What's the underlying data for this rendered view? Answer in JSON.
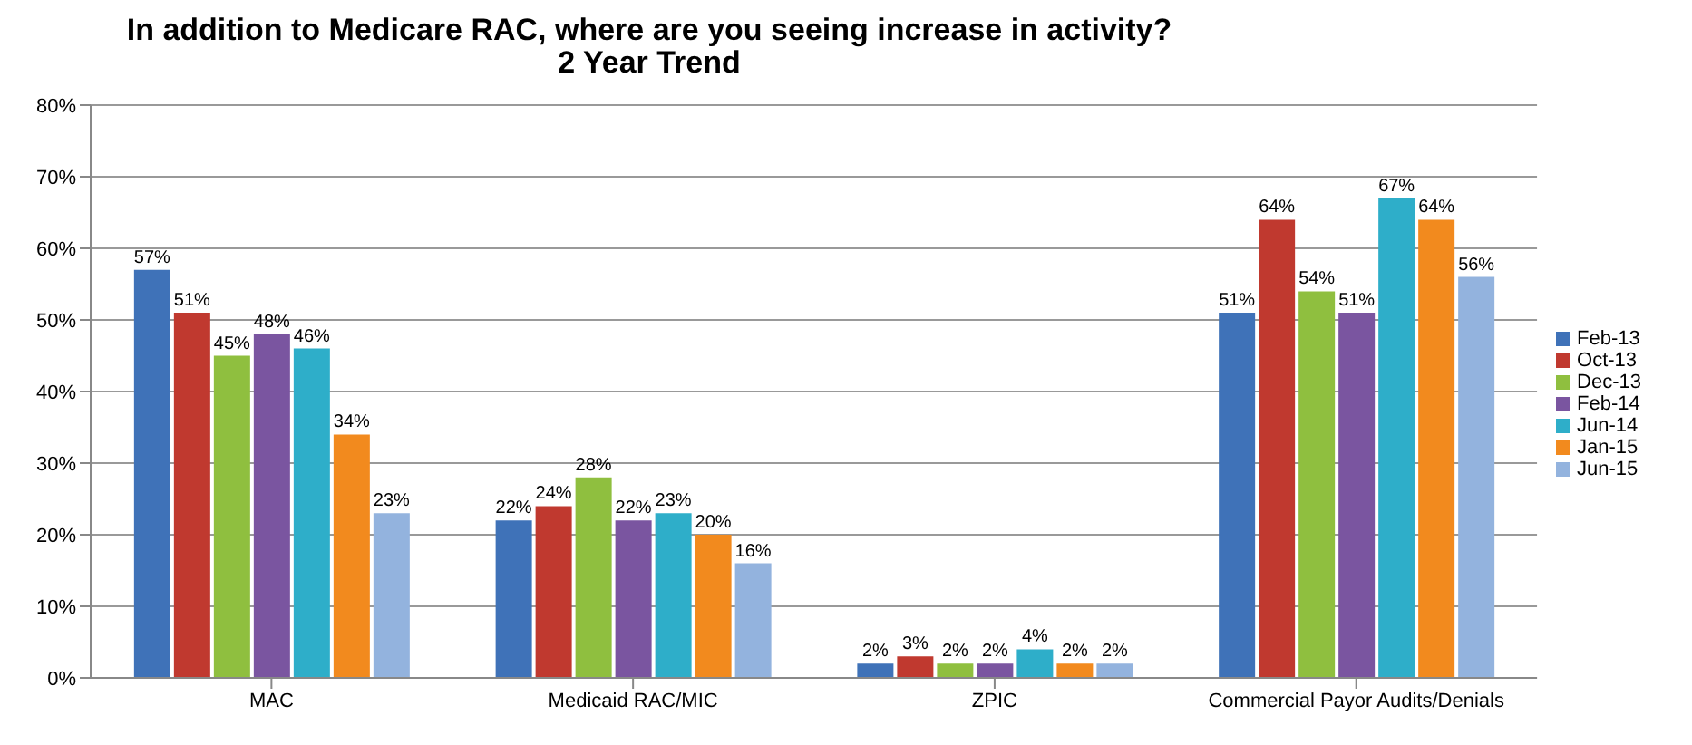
{
  "chart_data": {
    "type": "bar",
    "title": "In addition to Medicare RAC, where are you seeing increase in activity?",
    "subtitle": "2 Year Trend",
    "categories": [
      "MAC",
      "Medicaid RAC/MIC",
      "ZPIC",
      "Commercial Payor Audits/Denials"
    ],
    "series": [
      {
        "name": "Feb-13",
        "color": "#3f72b8",
        "values": [
          57,
          22,
          2,
          51
        ],
        "value_labels": [
          "57%",
          "22%",
          "2%",
          "51%"
        ]
      },
      {
        "name": "Oct-13",
        "color": "#c0392f",
        "values": [
          51,
          24,
          3,
          64
        ],
        "value_labels": [
          "51%",
          "24%",
          "3%",
          "64%"
        ]
      },
      {
        "name": "Dec-13",
        "color": "#8fbf3f",
        "values": [
          45,
          28,
          2,
          54
        ],
        "value_labels": [
          "45%",
          "28%",
          "2%",
          "54%"
        ]
      },
      {
        "name": "Feb-14",
        "color": "#7a55a0",
        "values": [
          48,
          22,
          2,
          51
        ],
        "value_labels": [
          "48%",
          "22%",
          "2%",
          "51%"
        ]
      },
      {
        "name": "Jun-14",
        "color": "#2eaec9",
        "values": [
          46,
          23,
          4,
          67
        ],
        "value_labels": [
          "46%",
          "23%",
          "4%",
          "67%"
        ]
      },
      {
        "name": "Jan-15",
        "color": "#f28a1e",
        "values": [
          34,
          20,
          2,
          64
        ],
        "value_labels": [
          "34%",
          "20%",
          "2%",
          "64%"
        ]
      },
      {
        "name": "Jun-15",
        "color": "#93b3de",
        "values": [
          23,
          16,
          2,
          56
        ],
        "value_labels": [
          "23%",
          "16%",
          "2%",
          "56%"
        ]
      }
    ],
    "ylim": [
      0,
      80
    ],
    "yticks": [
      {
        "value": 0,
        "label": "0%"
      },
      {
        "value": 10,
        "label": "10%"
      },
      {
        "value": 20,
        "label": "20%"
      },
      {
        "value": 30,
        "label": "30%"
      },
      {
        "value": 40,
        "label": "40%"
      },
      {
        "value": 50,
        "label": "50%"
      },
      {
        "value": 60,
        "label": "60%"
      },
      {
        "value": 70,
        "label": "70%"
      },
      {
        "value": 80,
        "label": "80%"
      }
    ],
    "grid": "y",
    "legend": "right"
  }
}
